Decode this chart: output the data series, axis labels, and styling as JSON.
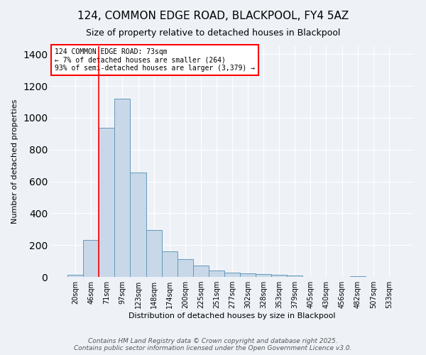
{
  "title": "124, COMMON EDGE ROAD, BLACKPOOL, FY4 5AZ",
  "subtitle": "Size of property relative to detached houses in Blackpool",
  "xlabel": "Distribution of detached houses by size in Blackpool",
  "ylabel": "Number of detached properties",
  "bar_labels": [
    "20sqm",
    "46sqm",
    "71sqm",
    "97sqm",
    "123sqm",
    "148sqm",
    "174sqm",
    "200sqm",
    "225sqm",
    "251sqm",
    "277sqm",
    "302sqm",
    "328sqm",
    "353sqm",
    "379sqm",
    "405sqm",
    "430sqm",
    "456sqm",
    "482sqm",
    "507sqm",
    "533sqm"
  ],
  "bar_values": [
    15,
    230,
    935,
    1120,
    655,
    295,
    160,
    110,
    70,
    40,
    25,
    22,
    20,
    12,
    8,
    0,
    0,
    0,
    5,
    0,
    0
  ],
  "bar_color": "#c8d8e8",
  "bar_edge_color": "#6699bb",
  "vline_color": "red",
  "vline_x_index": 2,
  "annotation_text": "124 COMMON EDGE ROAD: 73sqm\n← 7% of detached houses are smaller (264)\n93% of semi-detached houses are larger (3,379) →",
  "annotation_box_color": "white",
  "annotation_box_edgecolor": "red",
  "footer1": "Contains HM Land Registry data © Crown copyright and database right 2025.",
  "footer2": "Contains public sector information licensed under the Open Government Licence v3.0.",
  "ylim": [
    0,
    1450
  ],
  "title_fontsize": 11,
  "subtitle_fontsize": 9,
  "label_fontsize": 8,
  "tick_fontsize": 7,
  "annotation_fontsize": 7,
  "footer_fontsize": 6.5,
  "background_color": "#eef2f7"
}
